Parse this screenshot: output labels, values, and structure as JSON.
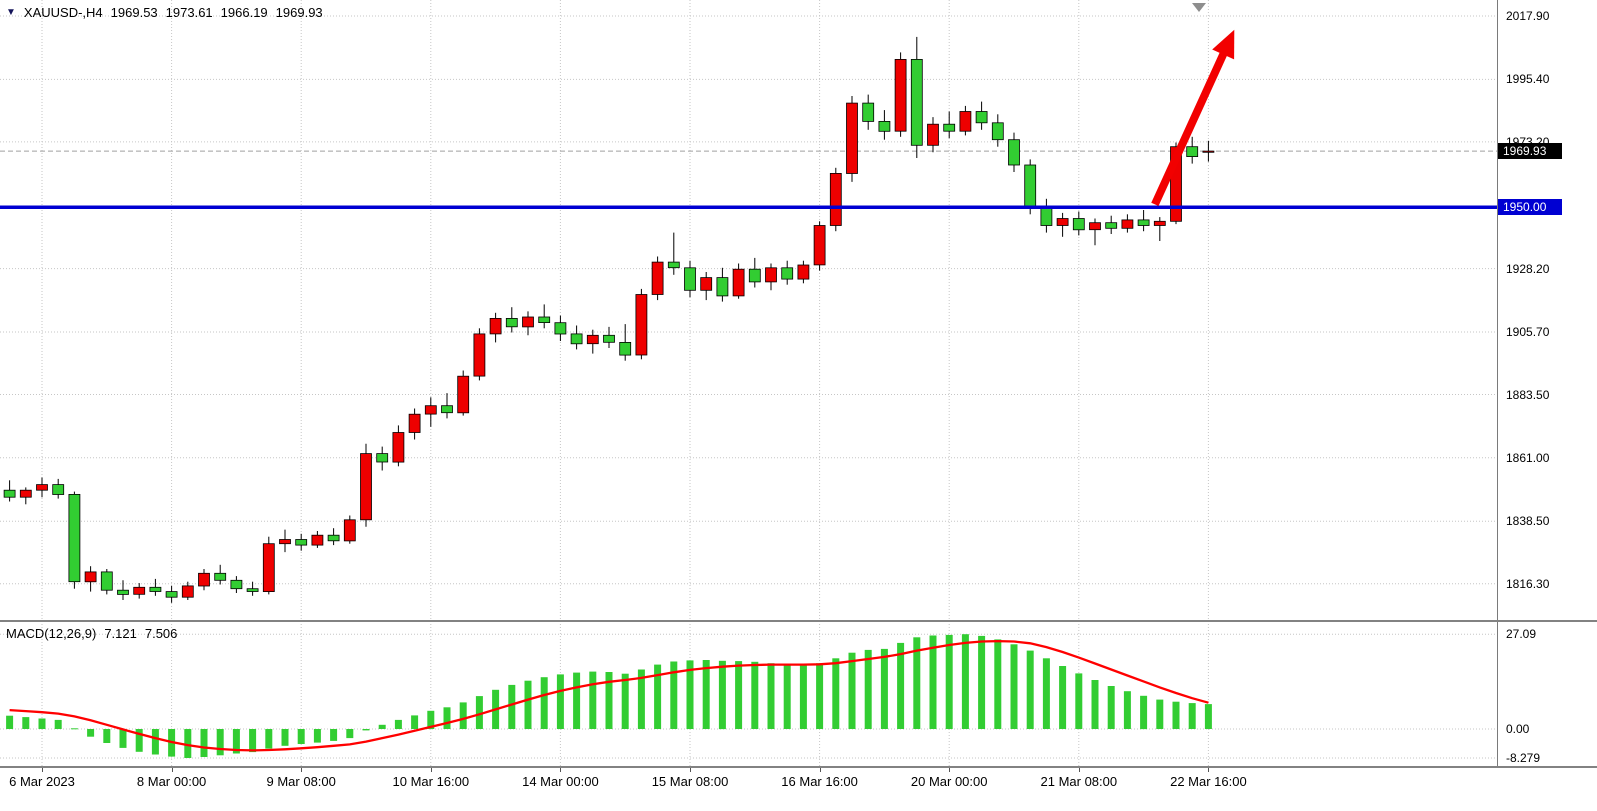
{
  "header": {
    "symbol": "XAUUSD-,H4",
    "open": "1969.53",
    "high": "1973.61",
    "low": "1966.19",
    "close": "1969.93"
  },
  "macd_label": {
    "name": "MACD(12,26,9)",
    "main_value": "7.121",
    "signal_value": "7.506"
  },
  "price_line": {
    "label": "1969.93",
    "value": 1969.93
  },
  "support_line": {
    "label": "1950.00",
    "value": 1950.0
  },
  "price_axis": {
    "labels": [
      "2017.90",
      "1995.40",
      "1973.20",
      "1928.20",
      "1905.70",
      "1883.50",
      "1861.00",
      "1838.50",
      "1816.30"
    ]
  },
  "macd_axis": {
    "labels": [
      "27.09",
      "0.00",
      "-8.279"
    ]
  },
  "colors": {
    "bull": "#ee0000",
    "bear": "#32cd32",
    "wick": "#000000",
    "macd_histogram": "#32cd32",
    "macd_signal": "#ff0000",
    "support_line": "#0000d2",
    "arrow": "#f20000",
    "grid": "#c6c6c6",
    "current_price_line": "#a0a0a0"
  },
  "chart_data": {
    "type": "candlestick",
    "symbol": "XAUUSD",
    "timeframe": "H4",
    "title": "XAUUSD-,H4 1969.53 1973.61 1966.19 1969.93",
    "y_axis": {
      "min": 1803.4,
      "max": 2023.6,
      "gridlines": [
        2017.9,
        1995.4,
        1973.2,
        1928.2,
        1905.7,
        1883.5,
        1861.0,
        1838.5,
        1816.3
      ]
    },
    "time_labels": [
      {
        "i": 2,
        "t": "6 Mar 2023"
      },
      {
        "i": 10,
        "t": "8 Mar 00:00"
      },
      {
        "i": 18,
        "t": "9 Mar 08:00"
      },
      {
        "i": 26,
        "t": "10 Mar 16:00"
      },
      {
        "i": 34,
        "t": "14 Mar 00:00"
      },
      {
        "i": 42,
        "t": "15 Mar 08:00"
      },
      {
        "i": 50,
        "t": "16 Mar 16:00"
      },
      {
        "i": 58,
        "t": "20 Mar 00:00"
      },
      {
        "i": 66,
        "t": "21 Mar 08:00"
      },
      {
        "i": 74,
        "t": "22 Mar 16:00"
      }
    ],
    "candles_ohlc": [
      [
        1849.5,
        1853,
        1845.5,
        1847
      ],
      [
        1847,
        1850.5,
        1844.5,
        1849.5
      ],
      [
        1849.5,
        1854,
        1847,
        1851.5
      ],
      [
        1851.5,
        1853.5,
        1846.5,
        1848
      ],
      [
        1848,
        1849,
        1814.5,
        1817
      ],
      [
        1817,
        1822.5,
        1813.5,
        1820.5
      ],
      [
        1820.5,
        1821.5,
        1812.5,
        1814
      ],
      [
        1814,
        1817.5,
        1810.5,
        1812.5
      ],
      [
        1812.5,
        1816.5,
        1811,
        1815
      ],
      [
        1815,
        1818,
        1812,
        1813.5
      ],
      [
        1813.5,
        1815.5,
        1809.5,
        1811.5
      ],
      [
        1811.5,
        1817,
        1810.5,
        1815.5
      ],
      [
        1815.5,
        1821.5,
        1814,
        1820
      ],
      [
        1820,
        1823,
        1816,
        1817.5
      ],
      [
        1817.5,
        1819,
        1813,
        1814.5
      ],
      [
        1814.5,
        1817,
        1812,
        1813.5
      ],
      [
        1813.5,
        1833,
        1812.5,
        1830.5
      ],
      [
        1830.5,
        1835.5,
        1827.5,
        1832
      ],
      [
        1832,
        1834,
        1828,
        1830
      ],
      [
        1830,
        1835,
        1829,
        1833.5
      ],
      [
        1833.5,
        1836,
        1830,
        1831.5
      ],
      [
        1831.5,
        1840.5,
        1830.5,
        1839
      ],
      [
        1839,
        1866,
        1836.5,
        1862.5
      ],
      [
        1862.5,
        1865,
        1856.5,
        1859.5
      ],
      [
        1859.5,
        1872.5,
        1858,
        1870
      ],
      [
        1870,
        1878.5,
        1867.5,
        1876.5
      ],
      [
        1876.5,
        1882.5,
        1872,
        1879.5
      ],
      [
        1879.5,
        1884,
        1875,
        1877
      ],
      [
        1877,
        1892,
        1876,
        1890
      ],
      [
        1890,
        1907,
        1888.5,
        1905
      ],
      [
        1905,
        1912.5,
        1902,
        1910.5
      ],
      [
        1910.5,
        1914.5,
        1905.5,
        1907.5
      ],
      [
        1907.5,
        1913,
        1904.5,
        1911
      ],
      [
        1911,
        1915.5,
        1907,
        1909
      ],
      [
        1909,
        1911.5,
        1902.5,
        1905
      ],
      [
        1905,
        1908,
        1899.5,
        1901.5
      ],
      [
        1901.5,
        1906.5,
        1898,
        1904.5
      ],
      [
        1904.5,
        1907.5,
        1900,
        1902
      ],
      [
        1902,
        1908.5,
        1895.5,
        1897.5
      ],
      [
        1897.5,
        1921,
        1896,
        1919
      ],
      [
        1919,
        1932.5,
        1917,
        1930.5
      ],
      [
        1930.5,
        1941,
        1926,
        1928.5
      ],
      [
        1928.5,
        1931,
        1918,
        1920.5
      ],
      [
        1920.5,
        1927,
        1917,
        1925
      ],
      [
        1925,
        1928.5,
        1916.5,
        1918.5
      ],
      [
        1918.5,
        1930,
        1917.5,
        1928
      ],
      [
        1928,
        1932,
        1921.5,
        1923.5
      ],
      [
        1923.5,
        1930,
        1920.5,
        1928.5
      ],
      [
        1928.5,
        1931,
        1922.5,
        1924.5
      ],
      [
        1924.5,
        1931,
        1923,
        1929.5
      ],
      [
        1929.5,
        1945,
        1927.5,
        1943.5
      ],
      [
        1943.5,
        1964,
        1941.5,
        1962
      ],
      [
        1962,
        1989.5,
        1959,
        1987
      ],
      [
        1987,
        1990,
        1977.5,
        1980.5
      ],
      [
        1980.5,
        1984.5,
        1974,
        1977
      ],
      [
        1977,
        2005,
        1975,
        2002.5
      ],
      [
        2002.5,
        2010.5,
        1967.5,
        1972
      ],
      [
        1972,
        1982,
        1969.5,
        1979.5
      ],
      [
        1979.5,
        1984,
        1974.5,
        1977
      ],
      [
        1977,
        1986,
        1975.5,
        1984
      ],
      [
        1984,
        1987.5,
        1977.5,
        1980
      ],
      [
        1980,
        1983,
        1971.5,
        1974
      ],
      [
        1974,
        1976.5,
        1962.5,
        1965
      ],
      [
        1965,
        1967,
        1947.5,
        1950
      ],
      [
        1950,
        1953,
        1941,
        1943.5
      ],
      [
        1943.5,
        1948,
        1939.5,
        1946
      ],
      [
        1946,
        1948.5,
        1940,
        1942
      ],
      [
        1942,
        1946,
        1936.5,
        1944.5
      ],
      [
        1944.5,
        1947,
        1940.5,
        1942.5
      ],
      [
        1942.5,
        1947.5,
        1941,
        1945.5
      ],
      [
        1945.5,
        1949,
        1941.5,
        1943.5
      ],
      [
        1943.5,
        1946.5,
        1938,
        1945
      ],
      [
        1945,
        1973,
        1944,
        1971.5
      ],
      [
        1971.5,
        1975,
        1965.5,
        1968
      ],
      [
        1969.53,
        1973.61,
        1966.19,
        1969.93
      ]
    ],
    "indicator": {
      "type": "macd_histogram_with_signal",
      "label": "MACD(12,26,9)",
      "current_macd": 7.121,
      "current_signal": 7.506,
      "levels": [
        27.09,
        0.0,
        -8.279
      ],
      "histogram": [
        3.8,
        3.4,
        3.0,
        2.6,
        0.2,
        -2.2,
        -4.0,
        -5.4,
        -6.5,
        -7.3,
        -7.9,
        -8.279,
        -8.0,
        -7.5,
        -7.0,
        -6.6,
        -5.6,
        -4.8,
        -4.3,
        -3.9,
        -3.4,
        -2.6,
        -0.4,
        1.2,
        2.6,
        3.9,
        5.2,
        6.2,
        7.6,
        9.4,
        11.2,
        12.6,
        13.8,
        14.8,
        15.6,
        16.1,
        16.4,
        16.3,
        15.8,
        17.0,
        18.4,
        19.3,
        19.6,
        19.7,
        19.5,
        19.4,
        19.2,
        18.8,
        18.4,
        18.2,
        18.8,
        20.2,
        21.8,
        22.6,
        22.9,
        24.6,
        26.2,
        26.7,
        26.9,
        27.09,
        26.6,
        25.6,
        24.2,
        22.4,
        20.2,
        18.0,
        15.9,
        14.0,
        12.3,
        10.8,
        9.5,
        8.4,
        7.8,
        7.4,
        7.121
      ],
      "signal": [
        5.4,
        5.1,
        4.8,
        4.4,
        3.6,
        2.5,
        1.2,
        -0.1,
        -1.4,
        -2.6,
        -3.7,
        -4.6,
        -5.3,
        -5.7,
        -6.0,
        -6.1,
        -6.0,
        -5.8,
        -5.5,
        -5.2,
        -4.8,
        -4.4,
        -3.6,
        -2.6,
        -1.6,
        -0.5,
        0.6,
        1.7,
        2.9,
        4.2,
        5.6,
        7.0,
        8.4,
        9.7,
        10.9,
        11.9,
        12.8,
        13.5,
        14.0,
        14.6,
        15.4,
        16.2,
        16.9,
        17.4,
        17.8,
        18.1,
        18.3,
        18.4,
        18.4,
        18.4,
        18.5,
        18.8,
        19.4,
        20.0,
        20.6,
        21.4,
        22.4,
        23.2,
        24.0,
        24.6,
        25.0,
        25.1,
        25.0,
        24.5,
        23.4,
        22.0,
        20.4,
        18.7,
        17.0,
        15.3,
        13.6,
        11.9,
        10.3,
        8.8,
        7.506
      ]
    },
    "annotations": {
      "horizontal_line_price": 1950.0,
      "current_price": 1969.93,
      "arrow": {
        "from_index": 70.7,
        "from_price": 1951,
        "to_index": 75.6,
        "to_price": 2013
      }
    }
  }
}
